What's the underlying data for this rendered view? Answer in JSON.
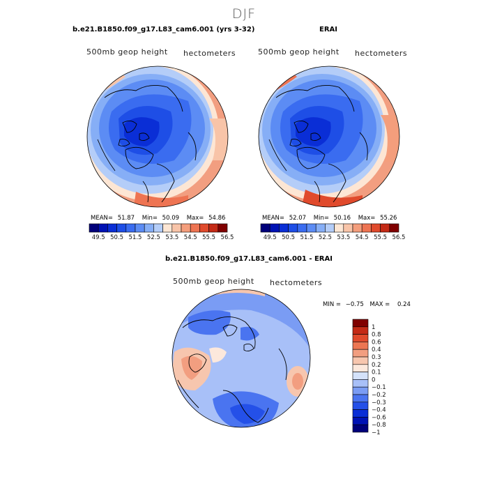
{
  "page_title": "DJF",
  "panels": [
    {
      "title": "b.e21.B1850.f09_g17.L83_cam6.001 (yrs 3-32)",
      "subtitle_left": "500mb geop height",
      "subtitle_right": "hectometers",
      "stats": {
        "mean_label": "MEAN=",
        "mean": "51.87",
        "min_label": "Min=",
        "min": "50.09",
        "max_label": "Max=",
        "max": "54.86"
      }
    },
    {
      "title": "ERAI",
      "subtitle_left": "500mb geop height",
      "subtitle_right": "hectometers",
      "stats": {
        "mean_label": "MEAN=",
        "mean": "52.07",
        "min_label": "Min=",
        "min": "50.16",
        "max_label": "Max=",
        "max": "55.26"
      }
    },
    {
      "title": "b.e21.B1850.f09_g17.L83_cam6.001 - ERAI",
      "subtitle_left": "500mb geop height",
      "subtitle_right": "hectometers",
      "stats": {
        "min_label": "MIN =",
        "min": "−0.75",
        "max_label": "MAX =",
        "max": "0.24"
      }
    }
  ],
  "colors": {
    "abs_scale": [
      "#00007a",
      "#0012b4",
      "#0a2ed6",
      "#1e4ee6",
      "#3a6cf0",
      "#5c8cf4",
      "#86aef6",
      "#b4cdf8",
      "#fde6d4",
      "#f8c4a8",
      "#f49e7c",
      "#ee7452",
      "#e04a2c",
      "#c42a16",
      "#800000"
    ],
    "diff_scale": [
      "#00007a",
      "#0012b4",
      "#0a2ed6",
      "#2450e8",
      "#4a74f0",
      "#7a9cf4",
      "#a8c0f8",
      "#d4e2fa",
      "#fce8dc",
      "#f7c6ae",
      "#f29e80",
      "#ec7652",
      "#e04a2c",
      "#c42a16",
      "#800000"
    ]
  },
  "chart_data": [
    {
      "type": "contour_map",
      "title": "b.e21.B1850.f09_g17.L83_cam6.001 (yrs 3-32)",
      "variable": "500mb geop height",
      "units": "hectometers",
      "projection": "north polar stereographic",
      "colorbar_ticks": [
        "49.5",
        "50.5",
        "51.5",
        "52.5",
        "53.5",
        "54.5",
        "55.5",
        "56.5"
      ],
      "levels": [
        49.5,
        50,
        50.5,
        51,
        51.5,
        52,
        52.5,
        53,
        53.5,
        54,
        54.5,
        55,
        55.5,
        56,
        56.5
      ],
      "mean": 51.87,
      "min": 50.09,
      "max": 54.86
    },
    {
      "type": "contour_map",
      "title": "ERAI",
      "variable": "500mb geop height",
      "units": "hectometers",
      "projection": "north polar stereographic",
      "colorbar_ticks": [
        "49.5",
        "50.5",
        "51.5",
        "52.5",
        "53.5",
        "54.5",
        "55.5",
        "56.5"
      ],
      "levels": [
        49.5,
        50,
        50.5,
        51,
        51.5,
        52,
        52.5,
        53,
        53.5,
        54,
        54.5,
        55,
        55.5,
        56,
        56.5
      ],
      "mean": 52.07,
      "min": 50.16,
      "max": 55.26
    },
    {
      "type": "contour_map",
      "title": "b.e21.B1850.f09_g17.L83_cam6.001 - ERAI",
      "variable": "500mb geop height",
      "units": "hectometers",
      "projection": "north polar stereographic",
      "colorbar_ticks": [
        "1",
        "0.8",
        "0.6",
        "0.4",
        "0.3",
        "0.2",
        "0.1",
        "0",
        "−0.1",
        "−0.2",
        "−0.3",
        "−0.4",
        "−0.6",
        "−0.8",
        "−1"
      ],
      "levels": [
        -1,
        -0.8,
        -0.6,
        -0.4,
        -0.3,
        -0.2,
        -0.1,
        0,
        0.1,
        0.2,
        0.3,
        0.4,
        0.6,
        0.8,
        1
      ],
      "min": -0.75,
      "max": 0.24
    }
  ]
}
